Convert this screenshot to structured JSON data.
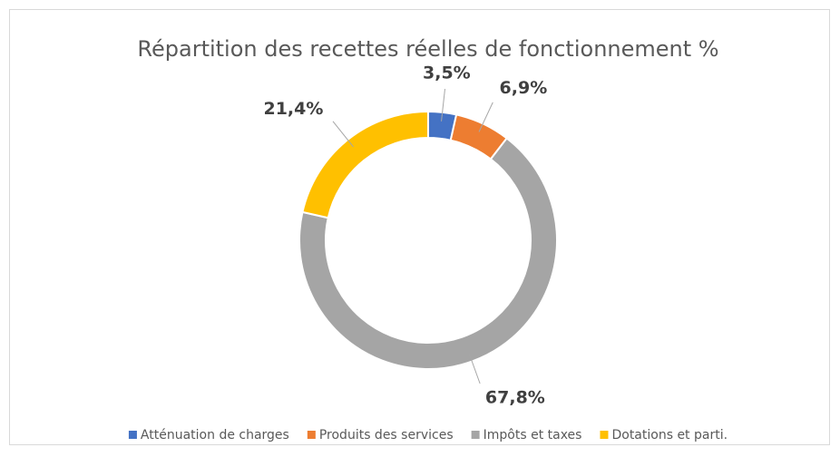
{
  "chart_data": {
    "type": "donut",
    "title": "Répartition des recettes réelles de fonctionnement %",
    "categories": [
      "Atténuation de charges",
      "Produits des services",
      "Impôts et taxes",
      "Dotations et parti."
    ],
    "values": [
      3.5,
      6.9,
      67.8,
      21.4
    ],
    "value_labels": [
      "3,5%",
      "6,9%",
      "67,8%",
      "21,4%"
    ],
    "colors": [
      "#4472c4",
      "#ed7d31",
      "#a5a5a5",
      "#ffc000"
    ],
    "legend": "bottom"
  }
}
